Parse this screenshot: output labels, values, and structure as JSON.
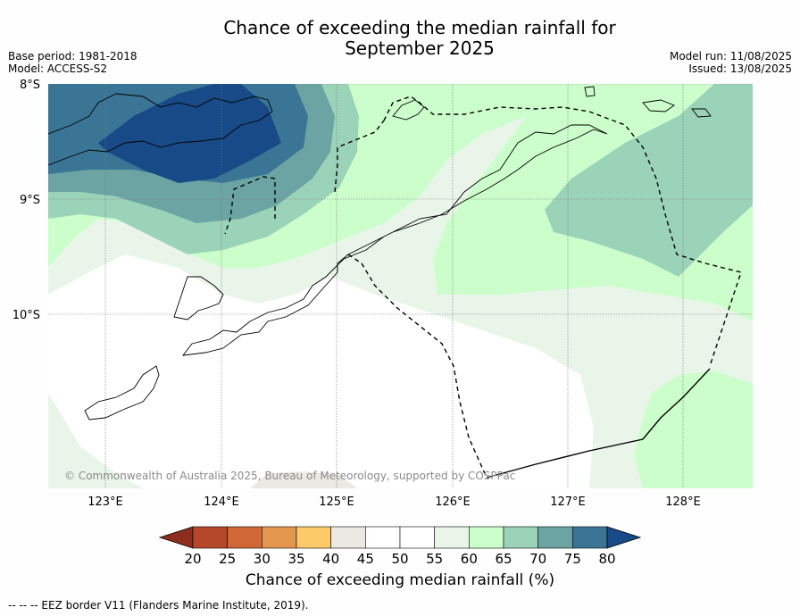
{
  "title_line1": "Chance of exceeding the median rainfall for",
  "title_line2": "September 2025",
  "meta_left": {
    "base_period": "Base period: 1981-2018",
    "model": "Model: ACCESS-S2"
  },
  "meta_right": {
    "model_run": "Model run: 11/08/2025",
    "issued": "Issued: 13/08/2025"
  },
  "lat_ticks": [
    "8°S",
    "9°S",
    "10°S"
  ],
  "lon_ticks": [
    "123°E",
    "124°E",
    "125°E",
    "126°E",
    "127°E",
    "128°E"
  ],
  "copyright": "© Commonwealth of Australia 2025, Bureau of Meteorology, supported by COSPPac",
  "colorbar": {
    "ticks": [
      "20",
      "25",
      "30",
      "35",
      "40",
      "45",
      "50",
      "55",
      "60",
      "65",
      "70",
      "75",
      "80"
    ],
    "label": "Chance of exceeding median rainfall (%)",
    "colors": [
      "#8c2d1e",
      "#b5472b",
      "#cf6836",
      "#e3964e",
      "#fdca6a",
      "#ece9e4",
      "#ffffff",
      "#ffffff",
      "#eaf5ea",
      "#ccfecc",
      "#9bd3b9",
      "#6ba4a3",
      "#3b7596",
      "#174a87"
    ]
  },
  "footnote": "--  --  -- EEZ border V11 (Flanders Marine Institute, 2019)."
}
